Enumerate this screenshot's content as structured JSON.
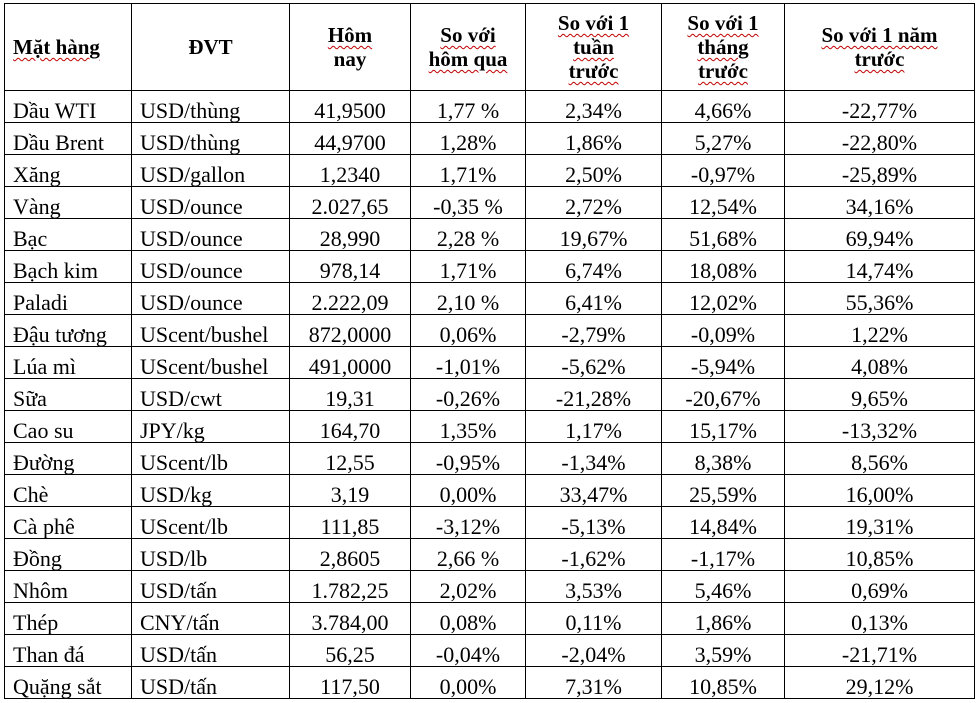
{
  "table": {
    "headers": {
      "item": "Mặt hàng",
      "unit": "ĐVT",
      "today": [
        "Hôm",
        "nay"
      ],
      "vs_yesterday": [
        "So với",
        "hôm qua"
      ],
      "vs_week": [
        "So với 1",
        "tuần",
        "trước"
      ],
      "vs_month": [
        "So với 1",
        "tháng",
        "trước"
      ],
      "vs_year": [
        "So với 1 năm",
        "trước"
      ]
    },
    "rows": [
      {
        "item": "Dầu WTI",
        "unit": "USD/thùng",
        "today": "41,9500",
        "vs_yesterday": "1,77 %",
        "vs_week": "2,34%",
        "vs_month": "4,66%",
        "vs_year": "-22,77%"
      },
      {
        "item": "Dầu Brent",
        "unit": "USD/thùng",
        "today": "44,9700",
        "vs_yesterday": "1,28%",
        "vs_week": "1,86%",
        "vs_month": "5,27%",
        "vs_year": "-22,80%"
      },
      {
        "item": "Xăng",
        "unit": "USD/gallon",
        "today": "1,2340",
        "vs_yesterday": "1,71%",
        "vs_week": "2,50%",
        "vs_month": "-0,97%",
        "vs_year": "-25,89%"
      },
      {
        "item": "Vàng",
        "unit": "USD/ounce",
        "today": "2.027,65",
        "vs_yesterday": "-0,35 %",
        "vs_week": "2,72%",
        "vs_month": "12,54%",
        "vs_year": "34,16%"
      },
      {
        "item": "Bạc",
        "unit": "USD/ounce",
        "today": "28,990",
        "vs_yesterday": "2,28 %",
        "vs_week": "19,67%",
        "vs_month": "51,68%",
        "vs_year": "69,94%"
      },
      {
        "item": "Bạch kim",
        "unit": "USD/ounce",
        "today": "978,14",
        "vs_yesterday": "1,71%",
        "vs_week": "6,74%",
        "vs_month": "18,08%",
        "vs_year": "14,74%"
      },
      {
        "item": "Paladi",
        "unit": "USD/ounce",
        "today": "2.222,09",
        "vs_yesterday": "2,10 %",
        "vs_week": "6,41%",
        "vs_month": "12,02%",
        "vs_year": "55,36%"
      },
      {
        "item": "Đậu tương",
        "unit": "UScent/bushel",
        "today": "872,0000",
        "vs_yesterday": "0,06%",
        "vs_week": "-2,79%",
        "vs_month": "-0,09%",
        "vs_year": "1,22%"
      },
      {
        "item": "Lúa mì",
        "unit": "UScent/bushel",
        "today": "491,0000",
        "vs_yesterday": "-1,01%",
        "vs_week": "-5,62%",
        "vs_month": "-5,94%",
        "vs_year": "4,08%"
      },
      {
        "item": "Sữa",
        "unit": "USD/cwt",
        "today": "19,31",
        "vs_yesterday": "-0,26%",
        "vs_week": "-21,28%",
        "vs_month": "-20,67%",
        "vs_year": "9,65%"
      },
      {
        "item": "Cao su",
        "unit": "JPY/kg",
        "today": "164,70",
        "vs_yesterday": "1,35%",
        "vs_week": "1,17%",
        "vs_month": "15,17%",
        "vs_year": "-13,32%"
      },
      {
        "item": "Đường",
        "unit": "UScent/lb",
        "today": "12,55",
        "vs_yesterday": "-0,95%",
        "vs_week": "-1,34%",
        "vs_month": "8,38%",
        "vs_year": "8,56%"
      },
      {
        "item": "Chè",
        "unit": "USD/kg",
        "today": "3,19",
        "vs_yesterday": "0,00%",
        "vs_week": "33,47%",
        "vs_month": "25,59%",
        "vs_year": "16,00%"
      },
      {
        "item": "Cà phê",
        "unit": "UScent/lb",
        "today": "111,85",
        "vs_yesterday": "-3,12%",
        "vs_week": "-5,13%",
        "vs_month": "14,84%",
        "vs_year": "19,31%"
      },
      {
        "item": "Đồng",
        "unit": "USD/lb",
        "today": "2,8605",
        "vs_yesterday": "2,66 %",
        "vs_week": "-1,62%",
        "vs_month": "-1,17%",
        "vs_year": "10,85%"
      },
      {
        "item": "Nhôm",
        "unit": "USD/tấn",
        "today": "1.782,25",
        "vs_yesterday": "2,02%",
        "vs_week": "3,53%",
        "vs_month": "5,46%",
        "vs_year": "0,69%"
      },
      {
        "item": "Thép",
        "unit": "CNY/tấn",
        "today": "3.784,00",
        "vs_yesterday": "0,08%",
        "vs_week": "0,11%",
        "vs_month": "1,86%",
        "vs_year": "0,13%"
      },
      {
        "item": "Than đá",
        "unit": "USD/tấn",
        "today": "56,25",
        "vs_yesterday": "-0,04%",
        "vs_week": "-2,04%",
        "vs_month": "3,59%",
        "vs_year": "-21,71%"
      },
      {
        "item": "Quặng sắt",
        "unit": "USD/tấn",
        "today": "117,50",
        "vs_yesterday": "0,00%",
        "vs_week": "7,31%",
        "vs_month": "10,85%",
        "vs_year": "29,12%"
      }
    ]
  }
}
